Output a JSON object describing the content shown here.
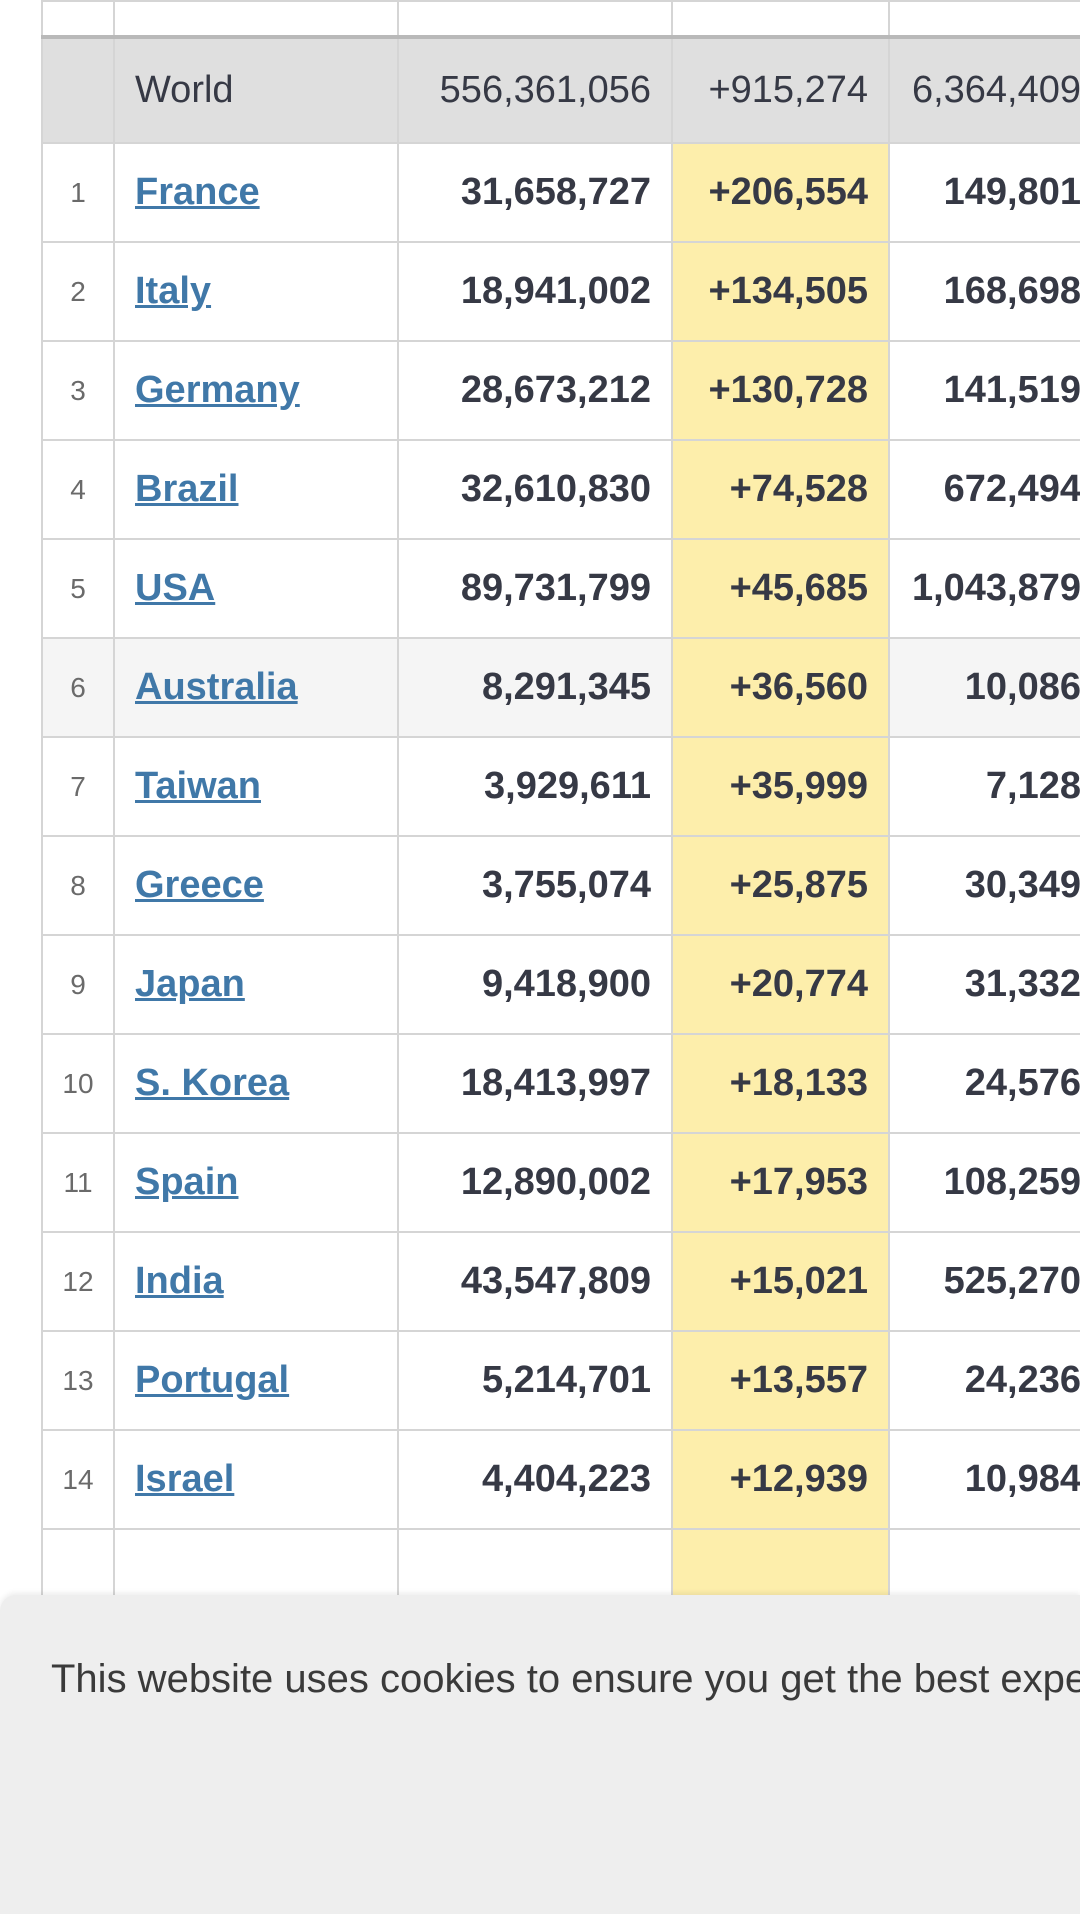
{
  "world": {
    "country": "World",
    "total_cases": "556,361,056",
    "new_cases": "+915,274",
    "total_deaths": "6,364,409"
  },
  "rows": [
    {
      "rank": "1",
      "country": "France",
      "total_cases": "31,658,727",
      "new_cases": "+206,554",
      "total_deaths": "149,801"
    },
    {
      "rank": "2",
      "country": "Italy",
      "total_cases": "18,941,002",
      "new_cases": "+134,505",
      "total_deaths": "168,698"
    },
    {
      "rank": "3",
      "country": "Germany",
      "total_cases": "28,673,212",
      "new_cases": "+130,728",
      "total_deaths": "141,519"
    },
    {
      "rank": "4",
      "country": "Brazil",
      "total_cases": "32,610,830",
      "new_cases": "+74,528",
      "total_deaths": "672,494"
    },
    {
      "rank": "5",
      "country": "USA",
      "total_cases": "89,731,799",
      "new_cases": "+45,685",
      "total_deaths": "1,043,879"
    },
    {
      "rank": "6",
      "country": "Australia",
      "total_cases": "8,291,345",
      "new_cases": "+36,560",
      "total_deaths": "10,086"
    },
    {
      "rank": "7",
      "country": "Taiwan",
      "total_cases": "3,929,611",
      "new_cases": "+35,999",
      "total_deaths": "7,128"
    },
    {
      "rank": "8",
      "country": "Greece",
      "total_cases": "3,755,074",
      "new_cases": "+25,875",
      "total_deaths": "30,349"
    },
    {
      "rank": "9",
      "country": "Japan",
      "total_cases": "9,418,900",
      "new_cases": "+20,774",
      "total_deaths": "31,332"
    },
    {
      "rank": "10",
      "country": "S. Korea",
      "total_cases": "18,413,997",
      "new_cases": "+18,133",
      "total_deaths": "24,576"
    },
    {
      "rank": "11",
      "country": "Spain",
      "total_cases": "12,890,002",
      "new_cases": "+17,953",
      "total_deaths": "108,259"
    },
    {
      "rank": "12",
      "country": "India",
      "total_cases": "43,547,809",
      "new_cases": "+15,021",
      "total_deaths": "525,270"
    },
    {
      "rank": "13",
      "country": "Portugal",
      "total_cases": "5,214,701",
      "new_cases": "+13,557",
      "total_deaths": "24,236"
    },
    {
      "rank": "14",
      "country": "Israel",
      "total_cases": "4,404,223",
      "new_cases": "+12,939",
      "total_deaths": "10,984"
    }
  ],
  "cookie_banner": {
    "text": "This website uses cookies to ensure you get the best experience on our website."
  },
  "colors": {
    "new_cases_highlight": "#fdeeab",
    "world_row_bg": "#dfdfdf",
    "link": "#4078a8",
    "cookie_bg": "#eeeeee"
  }
}
